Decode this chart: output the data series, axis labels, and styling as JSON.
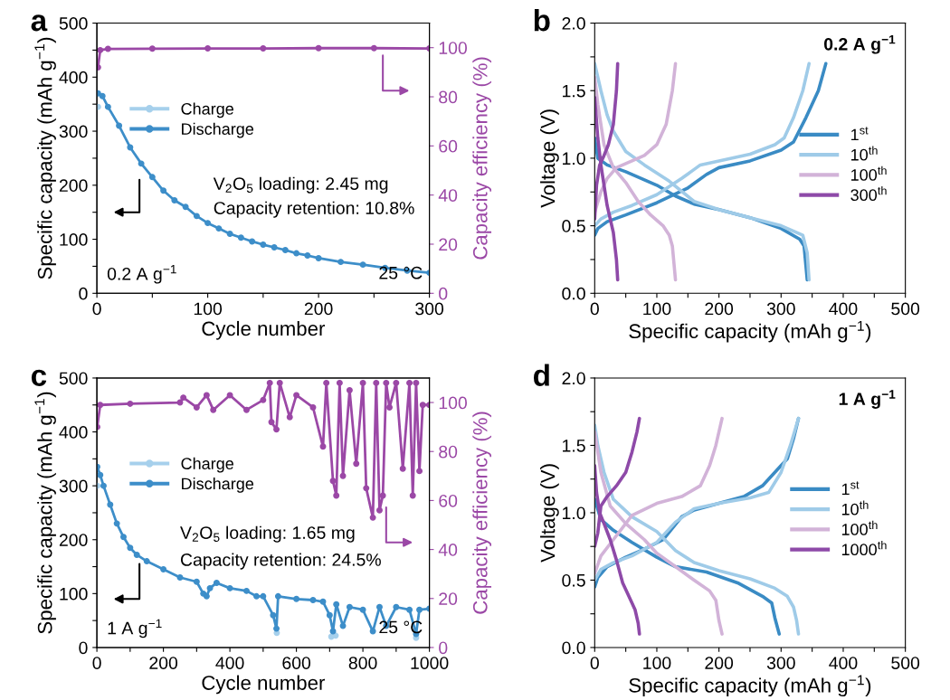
{
  "chart_data": [
    {
      "type": "line",
      "title": "a",
      "xlabel": "Cycle number",
      "ylabel": "Specific capacity (mAh g$^{−1}$)",
      "y2label": "Capacity efficiency (%)",
      "xlim": [
        0,
        300
      ],
      "xticks": [
        0,
        {
          "value": 50,
          "label": null
        },
        100,
        {
          "value": 150,
          "label": null
        },
        200,
        {
          "value": 250,
          "label": null
        },
        300
      ],
      "ylim": [
        0,
        500
      ],
      "yticks": [
        0,
        {
          "value": 50,
          "label": null
        },
        100,
        {
          "value": 150,
          "label": null
        },
        200,
        {
          "value": 250,
          "label": null
        },
        300,
        {
          "value": 350,
          "label": null
        },
        400,
        {
          "value": 450,
          "label": null
        },
        500
      ],
      "y2lim": [
        0,
        110
      ],
      "y2ticks": [
        0,
        20,
        40,
        60,
        80,
        100
      ],
      "marker": "circle",
      "legend": "top left",
      "annotations": [
        "V$_{2}$O$_{5}$ loading: 2.45 mg",
        "Capacity retention: 10.8%",
        "0.2 A g$^{−1}$",
        "25 °C"
      ],
      "series": [
        {
          "name": "Charge",
          "color": "#a6d0ec",
          "x": [
            1
          ],
          "values": [
            345
          ]
        },
        {
          "name": "Discharge",
          "color": "#3d8ec9",
          "x": [
            1,
            5,
            10,
            20,
            30,
            40,
            50,
            60,
            70,
            80,
            90,
            100,
            110,
            120,
            130,
            140,
            150,
            160,
            170,
            180,
            190,
            200,
            220,
            240,
            260,
            280,
            300
          ],
          "values": [
            370,
            365,
            345,
            310,
            270,
            240,
            215,
            190,
            172,
            160,
            143,
            130,
            120,
            110,
            103,
            96,
            90,
            85,
            80,
            74,
            70,
            65,
            58,
            53,
            47,
            42,
            38
          ]
        },
        {
          "color": "#9b48a6",
          "axis": "y2",
          "x": [
            1,
            3,
            10,
            50,
            100,
            150,
            200,
            250,
            300
          ],
          "values": [
            92,
            99,
            99.5,
            99.6,
            99.7,
            99.7,
            99.8,
            99.8,
            99.7
          ]
        }
      ]
    },
    {
      "type": "line",
      "title": "b",
      "xlabel": "Specific capacity (mAh g$^{−1}$)",
      "ylabel": "Voltage (V)",
      "xlim": [
        0,
        500
      ],
      "xticks": [
        0,
        {
          "value": 50,
          "label": null
        },
        100,
        {
          "value": 150,
          "label": null
        },
        200,
        {
          "value": 250,
          "label": null
        },
        300,
        {
          "value": 350,
          "label": null
        },
        400,
        {
          "value": 450,
          "label": null
        },
        500
      ],
      "ylim": [
        0,
        2
      ],
      "yticks": [
        {
          "value": 0,
          "label": "0.0"
        },
        {
          "value": 0.25,
          "label": null
        },
        0.5,
        {
          "value": 0.75,
          "label": null
        },
        {
          "value": 1,
          "label": "1.0"
        },
        {
          "value": 1.25,
          "label": null
        },
        1.5,
        {
          "value": 1.75,
          "label": null
        },
        {
          "value": 2,
          "label": "2.0"
        }
      ],
      "legend": "right",
      "annotations": [
        "0.2 A g$^{−1}$"
      ],
      "series": [
        {
          "name": "1$^{st}$",
          "color": "#3a8bc4",
          "x": [
            0,
            5,
            20,
            50,
            100,
            130,
            160,
            200,
            250,
            300,
            330,
            337,
            340,
            342
          ],
          "values": [
            1.15,
            1.0,
            0.95,
            0.9,
            0.8,
            0.72,
            0.66,
            0.62,
            0.56,
            0.48,
            0.4,
            0.35,
            0.2,
            0.1
          ]
        },
        {
          "color": "#3a8bc4",
          "x": [
            0,
            5,
            20,
            50,
            100,
            150,
            180,
            200,
            250,
            300,
            320,
            340,
            360,
            372
          ],
          "values": [
            0.43,
            0.48,
            0.53,
            0.58,
            0.67,
            0.78,
            0.88,
            0.93,
            0.98,
            1.06,
            1.12,
            1.3,
            1.5,
            1.7
          ]
        },
        {
          "name": "10$^{th}$",
          "color": "#9fcbe8",
          "x": [
            0,
            10,
            20,
            30,
            50,
            80,
            120,
            160,
            200,
            250,
            300,
            335,
            342,
            345
          ],
          "values": [
            1.7,
            1.5,
            1.32,
            1.2,
            1.05,
            0.95,
            0.83,
            0.68,
            0.62,
            0.56,
            0.5,
            0.43,
            0.3,
            0.1
          ]
        },
        {
          "color": "#9fcbe8",
          "x": [
            0,
            10,
            30,
            60,
            100,
            140,
            170,
            200,
            250,
            290,
            305,
            320,
            335,
            345
          ],
          "values": [
            0.5,
            0.55,
            0.6,
            0.65,
            0.73,
            0.85,
            0.95,
            0.98,
            1.03,
            1.1,
            1.15,
            1.3,
            1.5,
            1.7
          ]
        },
        {
          "name": "100$^{th}$",
          "color": "#d2b3d8",
          "x": [
            0,
            5,
            15,
            30,
            50,
            70,
            90,
            110,
            120,
            125,
            128,
            130
          ],
          "values": [
            1.6,
            1.4,
            1.1,
            0.93,
            0.82,
            0.68,
            0.58,
            0.5,
            0.43,
            0.35,
            0.2,
            0.1
          ]
        },
        {
          "color": "#d2b3d8",
          "x": [
            0,
            10,
            20,
            35,
            60,
            80,
            100,
            115,
            125,
            130
          ],
          "values": [
            0.6,
            0.75,
            0.85,
            0.93,
            0.98,
            1.02,
            1.1,
            1.25,
            1.5,
            1.7
          ]
        },
        {
          "name": "300$^{th}$",
          "color": "#8e4aa8",
          "x": [
            0,
            5,
            10,
            15,
            20,
            25,
            30,
            35,
            37
          ],
          "values": [
            1.45,
            1.15,
            0.95,
            0.8,
            0.65,
            0.55,
            0.45,
            0.25,
            0.1
          ]
        },
        {
          "color": "#8e4aa8",
          "x": [
            0,
            3,
            8,
            15,
            22,
            30,
            35,
            37
          ],
          "values": [
            0.55,
            0.8,
            0.95,
            1.02,
            1.1,
            1.25,
            1.5,
            1.7
          ]
        }
      ]
    },
    {
      "type": "line",
      "title": "c",
      "xlabel": "Cycle number",
      "ylabel": "Specific capacity (mAh g$^{−1}$)",
      "y2label": "Capacity efficiency (%)",
      "xlim": [
        0,
        1000
      ],
      "xticks": [
        0,
        {
          "value": 100,
          "label": null
        },
        200,
        {
          "value": 300,
          "label": null
        },
        400,
        {
          "value": 500,
          "label": null
        },
        600,
        {
          "value": 700,
          "label": null
        },
        800,
        {
          "value": 900,
          "label": null
        },
        1000
      ],
      "ylim": [
        0,
        500
      ],
      "yticks": [
        0,
        {
          "value": 50,
          "label": null
        },
        100,
        {
          "value": 150,
          "label": null
        },
        200,
        {
          "value": 250,
          "label": null
        },
        300,
        {
          "value": 350,
          "label": null
        },
        400,
        {
          "value": 450,
          "label": null
        },
        500
      ],
      "y2lim": [
        0,
        110
      ],
      "y2ticks": [
        0,
        20,
        40,
        60,
        80,
        100
      ],
      "marker": "circle",
      "legend": "top left",
      "annotations": [
        "V$_{2}$O$_{5}$ loading: 1.65 mg",
        "Capacity retention: 24.5%",
        "1 A g$^{−1}$",
        "25 °C"
      ],
      "series": [
        {
          "name": "Charge",
          "color": "#a6d0ec",
          "x": [
            1,
            300,
            541,
            600,
            705,
            710,
            718,
            800,
            960
          ],
          "values": [
            300,
            null,
            27,
            null,
            20,
            null,
            22,
            null,
            18
          ]
        },
        {
          "name": "Discharge",
          "color": "#3d8ec9",
          "x": [
            1,
            10,
            20,
            40,
            60,
            80,
            100,
            120,
            150,
            200,
            250,
            300,
            320,
            330,
            340,
            360,
            400,
            450,
            480,
            500,
            530,
            540,
            545,
            600,
            650,
            680,
            700,
            710,
            720,
            740,
            760,
            800,
            830,
            850,
            870,
            900,
            940,
            960,
            970,
            1000
          ],
          "values": [
            335,
            320,
            300,
            265,
            230,
            205,
            185,
            172,
            160,
            145,
            130,
            122,
            100,
            95,
            110,
            120,
            110,
            105,
            95,
            95,
            60,
            35,
            95,
            90,
            88,
            85,
            60,
            30,
            80,
            40,
            75,
            70,
            30,
            75,
            40,
            75,
            70,
            25,
            70,
            72
          ]
        },
        {
          "color": "#9b48a6",
          "axis": "y2",
          "x": [
            1,
            10,
            100,
            250,
            260,
            300,
            330,
            350,
            400,
            450,
            500,
            520,
            525,
            540,
            550,
            580,
            600,
            650,
            680,
            690,
            710,
            720,
            730,
            740,
            760,
            780,
            800,
            810,
            830,
            840,
            850,
            860,
            870,
            880,
            900,
            920,
            940,
            950,
            960,
            970,
            980,
            1000
          ],
          "values": [
            90,
            99,
            99.5,
            100,
            102,
            98,
            103,
            97,
            103,
            97,
            101,
            108,
            92,
            89,
            108,
            94,
            103,
            98,
            82,
            108,
            68,
            62,
            108,
            70,
            105,
            75,
            108,
            65,
            53,
            108,
            56,
            62,
            108,
            98,
            108,
            73,
            108,
            62,
            108,
            72,
            99,
            99
          ]
        }
      ]
    },
    {
      "type": "line",
      "title": "d",
      "xlabel": "Specific capacity (mAh g$^{−1}$)",
      "ylabel": "Voltage (V)",
      "xlim": [
        0,
        500
      ],
      "xticks": [
        0,
        {
          "value": 50,
          "label": null
        },
        100,
        {
          "value": 150,
          "label": null
        },
        200,
        {
          "value": 250,
          "label": null
        },
        300,
        {
          "value": 350,
          "label": null
        },
        400,
        {
          "value": 450,
          "label": null
        },
        500
      ],
      "ylim": [
        0,
        2
      ],
      "yticks": [
        {
          "value": 0,
          "label": "0.0"
        },
        {
          "value": 0.25,
          "label": null
        },
        0.5,
        {
          "value": 0.75,
          "label": null
        },
        {
          "value": 1,
          "label": "1.0"
        },
        {
          "value": 1.25,
          "label": null
        },
        1.5,
        {
          "value": 1.75,
          "label": null
        },
        {
          "value": 2,
          "label": "2.0"
        }
      ],
      "legend": "right",
      "annotations": [
        "1 A g$^{−1}$"
      ],
      "series": [
        {
          "name": "1$^{st}$",
          "color": "#3a8bc4",
          "x": [
            0,
            10,
            30,
            60,
            100,
            130,
            180,
            230,
            270,
            285,
            290,
            297
          ],
          "values": [
            1.1,
            0.95,
            0.87,
            0.78,
            0.67,
            0.6,
            0.56,
            0.48,
            0.38,
            0.33,
            0.22,
            0.1
          ]
        },
        {
          "color": "#3a8bc4",
          "x": [
            0,
            5,
            20,
            50,
            80,
            110,
            140,
            160,
            200,
            240,
            270,
            300,
            310,
            320,
            328
          ],
          "values": [
            0.45,
            0.52,
            0.6,
            0.67,
            0.73,
            0.8,
            0.97,
            1.02,
            1.07,
            1.12,
            1.2,
            1.35,
            1.4,
            1.55,
            1.7
          ]
        },
        {
          "name": "10$^{th}$",
          "color": "#9fcbe8",
          "x": [
            0,
            5,
            15,
            30,
            60,
            100,
            130,
            160,
            200,
            250,
            290,
            310,
            320,
            325,
            328
          ],
          "values": [
            1.65,
            1.5,
            1.3,
            1.1,
            0.97,
            0.86,
            0.72,
            0.63,
            0.57,
            0.51,
            0.44,
            0.38,
            0.3,
            0.2,
            0.1
          ]
        },
        {
          "color": "#9fcbe8",
          "x": [
            0,
            10,
            30,
            60,
            100,
            130,
            160,
            200,
            250,
            280,
            300,
            315,
            328
          ],
          "values": [
            0.5,
            0.58,
            0.63,
            0.68,
            0.78,
            0.93,
            1.03,
            1.07,
            1.11,
            1.15,
            1.3,
            1.5,
            1.7
          ]
        },
        {
          "name": "100$^{th}$",
          "color": "#d2b3d8",
          "x": [
            0,
            10,
            25,
            50,
            80,
            100,
            130,
            160,
            185,
            195,
            200,
            205
          ],
          "values": [
            1.6,
            1.3,
            1.05,
            0.92,
            0.8,
            0.7,
            0.6,
            0.5,
            0.42,
            0.35,
            0.2,
            0.1
          ]
        },
        {
          "color": "#d2b3d8",
          "x": [
            0,
            10,
            30,
            60,
            100,
            140,
            170,
            185,
            195,
            205
          ],
          "values": [
            0.55,
            0.68,
            0.8,
            0.98,
            1.07,
            1.12,
            1.2,
            1.35,
            1.5,
            1.7
          ]
        },
        {
          "name": "1000$^{th}$",
          "color": "#8e4aa8",
          "x": [
            0,
            3,
            8,
            15,
            25,
            35,
            45,
            55,
            65,
            70,
            72
          ],
          "values": [
            1.35,
            1.15,
            1.0,
            0.92,
            0.8,
            0.65,
            0.48,
            0.38,
            0.28,
            0.18,
            0.1
          ]
        },
        {
          "color": "#8e4aa8",
          "x": [
            0,
            5,
            10,
            20,
            35,
            50,
            60,
            68,
            72
          ],
          "values": [
            0.75,
            0.85,
            1.05,
            1.12,
            1.2,
            1.3,
            1.45,
            1.6,
            1.7
          ]
        }
      ]
    }
  ]
}
